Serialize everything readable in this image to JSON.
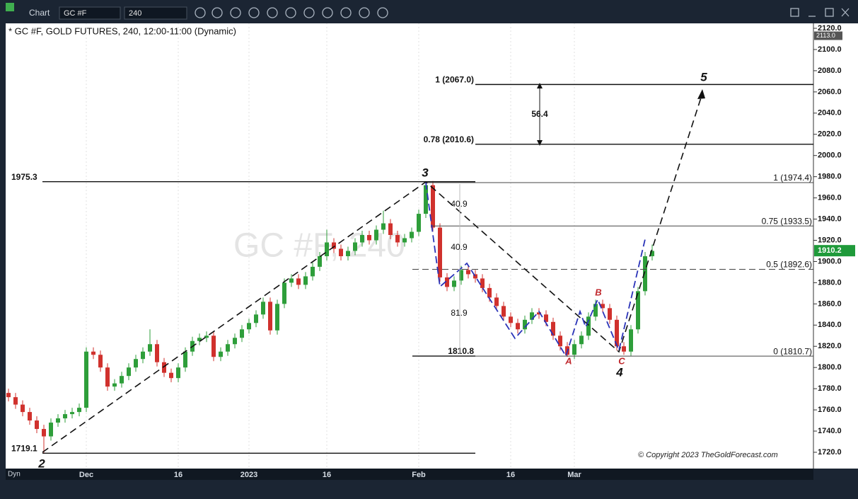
{
  "toolbar": {
    "app": "Chart",
    "symbol": "GC #F",
    "interval": "240"
  },
  "chart_data": {
    "type": "candlestick",
    "title": "* GC #F, GOLD FUTURES, 240, 12:00-11:00 (Dynamic)",
    "watermark": "GC #F, 240",
    "copyright": "© Copyright 2023 TheGoldForecast.com",
    "last_price": {
      "value": 1910.2,
      "label": "1910.2"
    },
    "top_price": {
      "value": 2113.0,
      "label": "2113.0"
    },
    "axis_mode": "Dyn",
    "up_color": "#2e9e3a",
    "down_color": "#d0312d",
    "categories": [
      null,
      null,
      null,
      null,
      null,
      null,
      null,
      null,
      null,
      null,
      null,
      "Dec",
      null,
      null,
      null,
      null,
      null,
      null,
      null,
      null,
      null,
      null,
      null,
      null,
      "16",
      null,
      null,
      null,
      null,
      null,
      null,
      null,
      null,
      null,
      "2023",
      null,
      null,
      null,
      null,
      null,
      null,
      null,
      null,
      null,
      null,
      "16",
      null,
      null,
      null,
      null,
      null,
      null,
      null,
      null,
      null,
      null,
      null,
      null,
      "Feb",
      null,
      null,
      null,
      null,
      null,
      null,
      null,
      null,
      null,
      null,
      null,
      null,
      "16",
      null,
      null,
      null,
      null,
      null,
      null,
      null,
      null,
      "Mar",
      null,
      null,
      null,
      null,
      null,
      null,
      null,
      null,
      null,
      null,
      null
    ],
    "open": [
      1776,
      1772,
      1765,
      1758,
      1750,
      1742,
      1735,
      1748,
      1752,
      1756,
      1758,
      1762,
      1815,
      1812,
      1800,
      1782,
      1785,
      1792,
      1800,
      1808,
      1815,
      1822,
      1805,
      1795,
      1790,
      1800,
      1815,
      1825,
      1828,
      1830,
      1810,
      1815,
      1822,
      1828,
      1836,
      1842,
      1850,
      1862,
      1835,
      1860,
      1880,
      1884,
      1878,
      1886,
      1895,
      1905,
      1918,
      1912,
      1905,
      1910,
      1918,
      1925,
      1920,
      1930,
      1936,
      1925,
      1918,
      1922,
      1928,
      1945,
      1972,
      1932,
      1885,
      1876,
      1882,
      1892,
      1888,
      1884,
      1875,
      1866,
      1858,
      1848,
      1842,
      1836,
      1845,
      1852,
      1850,
      1843,
      1830,
      1820,
      1812,
      1822,
      1830,
      1848,
      1860,
      1856,
      1845,
      1820,
      1815,
      1836,
      1872,
      1905
    ],
    "high": [
      1780,
      1776,
      1769,
      1762,
      1754,
      1746,
      1752,
      1756,
      1760,
      1762,
      1766,
      1819,
      1819,
      1816,
      1804,
      1789,
      1796,
      1804,
      1812,
      1819,
      1836,
      1826,
      1809,
      1799,
      1804,
      1819,
      1829,
      1832,
      1834,
      1834,
      1819,
      1826,
      1832,
      1840,
      1846,
      1854,
      1866,
      1866,
      1864,
      1884,
      1888,
      1888,
      1890,
      1899,
      1909,
      1930,
      1922,
      1916,
      1914,
      1922,
      1929,
      1929,
      1934,
      1948,
      1940,
      1929,
      1926,
      1932,
      1949,
      1975,
      1976,
      1936,
      1889,
      1886,
      1896,
      1896,
      1892,
      1888,
      1879,
      1870,
      1862,
      1852,
      1846,
      1849,
      1856,
      1856,
      1854,
      1847,
      1834,
      1824,
      1826,
      1834,
      1852,
      1864,
      1864,
      1860,
      1849,
      1824,
      1840,
      1876,
      1909,
      1916
    ],
    "low": [
      1768,
      1761,
      1754,
      1746,
      1738,
      1719,
      1731,
      1744,
      1748,
      1752,
      1754,
      1758,
      1808,
      1796,
      1778,
      1778,
      1781,
      1788,
      1796,
      1804,
      1811,
      1801,
      1791,
      1786,
      1786,
      1796,
      1811,
      1821,
      1824,
      1806,
      1806,
      1811,
      1818,
      1824,
      1832,
      1838,
      1846,
      1831,
      1831,
      1856,
      1876,
      1874,
      1874,
      1882,
      1891,
      1901,
      1908,
      1901,
      1901,
      1906,
      1914,
      1916,
      1916,
      1926,
      1921,
      1914,
      1914,
      1918,
      1924,
      1941,
      1928,
      1881,
      1872,
      1872,
      1878,
      1884,
      1880,
      1871,
      1862,
      1854,
      1844,
      1838,
      1832,
      1832,
      1841,
      1846,
      1839,
      1826,
      1816,
      1810,
      1808,
      1818,
      1826,
      1844,
      1852,
      1841,
      1816,
      1812,
      1811,
      1832,
      1868,
      1901
    ],
    "close": [
      1772,
      1765,
      1758,
      1750,
      1742,
      1735,
      1748,
      1752,
      1756,
      1758,
      1762,
      1815,
      1812,
      1800,
      1782,
      1785,
      1792,
      1800,
      1808,
      1815,
      1822,
      1805,
      1795,
      1790,
      1800,
      1815,
      1825,
      1828,
      1830,
      1810,
      1815,
      1822,
      1828,
      1836,
      1842,
      1850,
      1862,
      1835,
      1860,
      1880,
      1884,
      1878,
      1886,
      1895,
      1905,
      1918,
      1912,
      1905,
      1910,
      1918,
      1925,
      1920,
      1930,
      1936,
      1925,
      1918,
      1922,
      1928,
      1945,
      1972,
      1932,
      1885,
      1876,
      1882,
      1892,
      1888,
      1884,
      1875,
      1866,
      1858,
      1848,
      1842,
      1836,
      1845,
      1852,
      1850,
      1843,
      1830,
      1820,
      1812,
      1822,
      1830,
      1848,
      1860,
      1856,
      1845,
      1820,
      1815,
      1836,
      1872,
      1905,
      1910
    ],
    "ylim": [
      1720,
      2120
    ],
    "yticks": [
      {
        "value": 1720,
        "label": "1720.0"
      },
      {
        "value": 1740,
        "label": "1740.0"
      },
      {
        "value": 1760,
        "label": "1760.0"
      },
      {
        "value": 1780,
        "label": "1780.0"
      },
      {
        "value": 1800,
        "label": "1800.0"
      },
      {
        "value": 1820,
        "label": "1820.0"
      },
      {
        "value": 1840,
        "label": "1840.0"
      },
      {
        "value": 1860,
        "label": "1860.0"
      },
      {
        "value": 1880,
        "label": "1880.0"
      },
      {
        "value": 1900,
        "label": "1900.0"
      },
      {
        "value": 1920,
        "label": "1920.0"
      },
      {
        "value": 1940,
        "label": "1940.0"
      },
      {
        "value": 1960,
        "label": "1960.0"
      },
      {
        "value": 1980,
        "label": "1980.0"
      },
      {
        "value": 2000,
        "label": "2000.0"
      },
      {
        "value": 2020,
        "label": "2020.0"
      },
      {
        "value": 2040,
        "label": "2040.0"
      },
      {
        "value": 2060,
        "label": "2060.0"
      },
      {
        "value": 2080,
        "label": "2080.0"
      },
      {
        "value": 2100,
        "label": "2100.0"
      },
      {
        "value": 2120,
        "label": "2120.0"
      }
    ],
    "levels": [
      {
        "value": 1975.3,
        "label": "1975.3"
      },
      {
        "value": 1719.1,
        "label": "1719.1"
      },
      {
        "value": 2067.0,
        "label": "1 (2067.0)"
      },
      {
        "value": 2010.6,
        "label": "0.78 (2010.6)"
      },
      {
        "value": 1974.4,
        "label": "1 (1974.4)"
      },
      {
        "value": 1933.5,
        "label": "0.75 (1933.5)"
      },
      {
        "value": 1892.6,
        "label": "0.5 (1892.6)"
      },
      {
        "value": 1810.7,
        "label": "0 (1810.7)"
      },
      {
        "value": 1810.8,
        "label": "1810.8"
      }
    ],
    "waves": [
      "2",
      "3",
      "4",
      "5",
      "A",
      "B",
      "C"
    ],
    "measures": [
      40.9,
      40.9,
      81.9,
      56.4
    ]
  }
}
